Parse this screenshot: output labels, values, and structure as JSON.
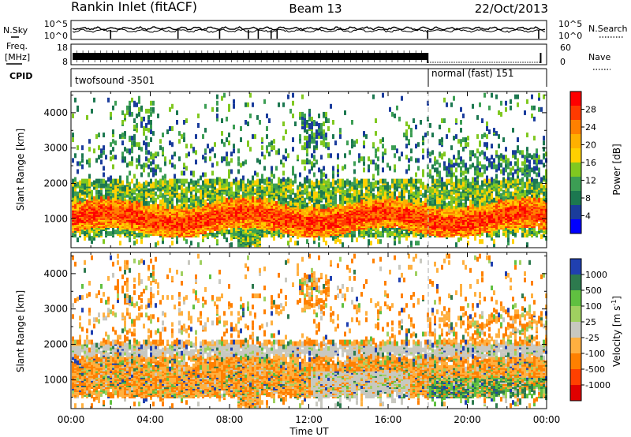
{
  "header": {
    "station": "Rankin Inlet (fitACF)",
    "beam": "Beam 13",
    "date": "22/Oct/2013"
  },
  "top_panels": {
    "nsky_label": "N.Sky",
    "nsearch_label": "N.Search",
    "nsky_ticks": [
      "10^5",
      "10^0"
    ],
    "freq_label_1": "Freq.",
    "freq_label_2": "[MHz]",
    "freq_ticks": [
      "18",
      "8"
    ],
    "nave_label": "Nave",
    "nave_ticks": [
      "60",
      "0"
    ],
    "cpid_label": "CPID",
    "cpid_segments": [
      {
        "name": "twofsound -3501",
        "start_hour": 0,
        "end_hour": 18
      },
      {
        "name": "normal (fast) 151",
        "start_hour": 18,
        "end_hour": 24
      }
    ]
  },
  "power_legend": {
    "title": "Power [dB]",
    "ticks": [
      "28",
      "24",
      "20",
      "16",
      "12",
      "8",
      "4"
    ],
    "colors": [
      "#ff0000",
      "#ff3a00",
      "#ff8000",
      "#ffb000",
      "#ffd000",
      "#80c820",
      "#3c9e54",
      "#1c7850",
      "#1a3c9c",
      "#0000ff"
    ]
  },
  "velocity_legend": {
    "title": "Velocity [m s",
    "title_sup": "-1",
    "title_end": "]",
    "ticks": [
      "1000",
      "500",
      "100",
      "25",
      "-25",
      "-100",
      "-500",
      "-1000"
    ],
    "colors": [
      "#2040b0",
      "#2d7a4e",
      "#60c040",
      "#a0d060",
      "#c8c8c0",
      "#ffb040",
      "#ff8000",
      "#ff4000",
      "#e00000"
    ]
  },
  "chart_data": {
    "type": "heatmap",
    "title": "Rankin Inlet (fitACF)",
    "xlabel": "Time UT",
    "ylabel": "Slant Range [km]",
    "x_ticks": [
      "00:00",
      "04:00",
      "08:00",
      "12:00",
      "16:00",
      "20:00",
      "00:00"
    ],
    "y_ticks": [
      "1000",
      "2000",
      "3000",
      "4000"
    ],
    "xlim_hours": [
      0,
      24
    ],
    "ylim_km": [
      180,
      4600
    ],
    "power_range_db": [
      0,
      32
    ],
    "velocity_range_ms": [
      -1000,
      1000
    ],
    "mode_change_hour": 18,
    "panels": [
      "Power [dB]",
      "Velocity [m s-1]"
    ]
  }
}
